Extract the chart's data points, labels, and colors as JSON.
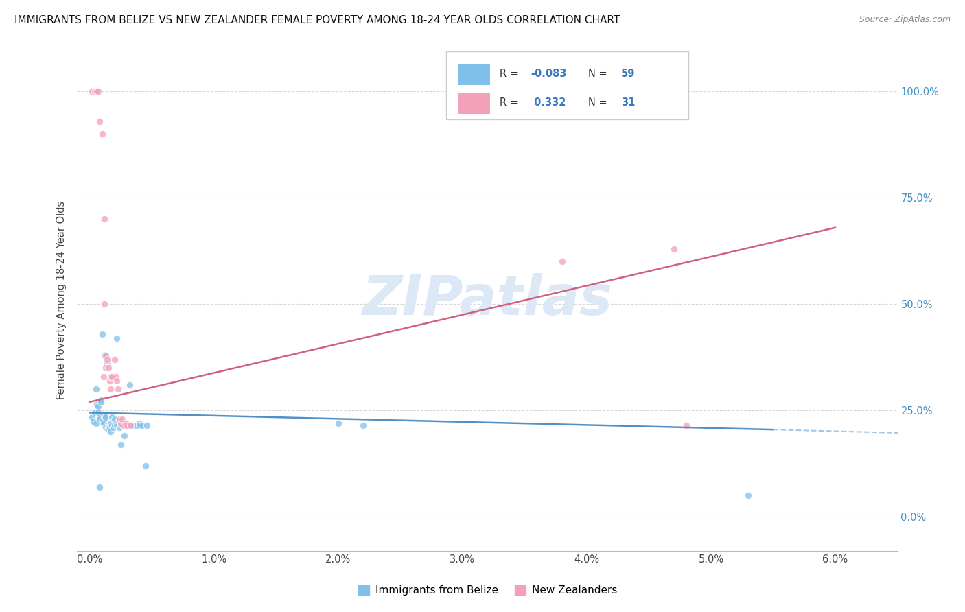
{
  "title": "IMMIGRANTS FROM BELIZE VS NEW ZEALANDER FEMALE POVERTY AMONG 18-24 YEAR OLDS CORRELATION CHART",
  "source": "Source: ZipAtlas.com",
  "ylabel_label": "Female Poverty Among 18-24 Year Olds",
  "xlim": [
    0.0,
    0.06
  ],
  "ylim": [
    0.0,
    1.05
  ],
  "ytick_vals": [
    0.0,
    0.25,
    0.5,
    0.75,
    1.0
  ],
  "ytick_labels": [
    "0.0%",
    "25.0%",
    "50.0%",
    "75.0%",
    "100.0%"
  ],
  "xtick_vals": [
    0.0,
    0.01,
    0.02,
    0.03,
    0.04,
    0.05,
    0.06
  ],
  "xtick_labels": [
    "0.0%",
    "1.0%",
    "2.0%",
    "3.0%",
    "4.0%",
    "5.0%",
    "6.0%"
  ],
  "blue_scatter": [
    [
      0.0002,
      0.235
    ],
    [
      0.0003,
      0.225
    ],
    [
      0.0004,
      0.245
    ],
    [
      0.0005,
      0.22
    ],
    [
      0.0005,
      0.3
    ],
    [
      0.0006,
      0.265
    ],
    [
      0.0007,
      0.245
    ],
    [
      0.0007,
      0.26
    ],
    [
      0.0008,
      0.235
    ],
    [
      0.0008,
      0.23
    ],
    [
      0.0009,
      0.275
    ],
    [
      0.0009,
      0.27
    ],
    [
      0.001,
      0.43
    ],
    [
      0.001,
      0.225
    ],
    [
      0.0011,
      0.24
    ],
    [
      0.0011,
      0.22
    ],
    [
      0.0012,
      0.38
    ],
    [
      0.0012,
      0.235
    ],
    [
      0.0013,
      0.235
    ],
    [
      0.0013,
      0.21
    ],
    [
      0.0014,
      0.36
    ],
    [
      0.0014,
      0.215
    ],
    [
      0.0015,
      0.215
    ],
    [
      0.0015,
      0.205
    ],
    [
      0.0016,
      0.215
    ],
    [
      0.0016,
      0.21
    ],
    [
      0.0017,
      0.22
    ],
    [
      0.0017,
      0.2
    ],
    [
      0.0018,
      0.235
    ],
    [
      0.0018,
      0.215
    ],
    [
      0.0019,
      0.21
    ],
    [
      0.002,
      0.23
    ],
    [
      0.002,
      0.215
    ],
    [
      0.0021,
      0.22
    ],
    [
      0.0022,
      0.42
    ],
    [
      0.0022,
      0.215
    ],
    [
      0.0023,
      0.215
    ],
    [
      0.0024,
      0.21
    ],
    [
      0.0025,
      0.215
    ],
    [
      0.0025,
      0.17
    ],
    [
      0.0026,
      0.22
    ],
    [
      0.0027,
      0.215
    ],
    [
      0.0028,
      0.215
    ],
    [
      0.0028,
      0.19
    ],
    [
      0.003,
      0.22
    ],
    [
      0.0031,
      0.215
    ],
    [
      0.0032,
      0.31
    ],
    [
      0.0033,
      0.215
    ],
    [
      0.0035,
      0.215
    ],
    [
      0.0038,
      0.215
    ],
    [
      0.004,
      0.22
    ],
    [
      0.004,
      0.215
    ],
    [
      0.0042,
      0.215
    ],
    [
      0.0045,
      0.12
    ],
    [
      0.0046,
      0.215
    ],
    [
      0.02,
      0.22
    ],
    [
      0.022,
      0.215
    ],
    [
      0.053,
      0.05
    ],
    [
      0.0008,
      0.07
    ]
  ],
  "pink_scatter": [
    [
      0.0002,
      1.0
    ],
    [
      0.0004,
      1.0
    ],
    [
      0.0006,
      1.0
    ],
    [
      0.0007,
      1.0
    ],
    [
      0.0008,
      0.93
    ],
    [
      0.001,
      0.9
    ],
    [
      0.0011,
      0.33
    ],
    [
      0.0012,
      0.7
    ],
    [
      0.0012,
      0.5
    ],
    [
      0.0013,
      0.38
    ],
    [
      0.0013,
      0.35
    ],
    [
      0.0014,
      0.37
    ],
    [
      0.0015,
      0.35
    ],
    [
      0.0016,
      0.32
    ],
    [
      0.0017,
      0.33
    ],
    [
      0.0017,
      0.3
    ],
    [
      0.0018,
      0.33
    ],
    [
      0.002,
      0.37
    ],
    [
      0.0021,
      0.33
    ],
    [
      0.0022,
      0.32
    ],
    [
      0.0023,
      0.3
    ],
    [
      0.0024,
      0.23
    ],
    [
      0.0025,
      0.22
    ],
    [
      0.0026,
      0.23
    ],
    [
      0.0028,
      0.215
    ],
    [
      0.0029,
      0.22
    ],
    [
      0.003,
      0.215
    ],
    [
      0.0033,
      0.215
    ],
    [
      0.038,
      0.6
    ],
    [
      0.047,
      0.63
    ],
    [
      0.048,
      0.215
    ]
  ],
  "blue_line": [
    [
      0.0,
      0.245
    ],
    [
      0.055,
      0.205
    ]
  ],
  "blue_dashed_line": [
    [
      0.055,
      0.205
    ],
    [
      0.068,
      0.195
    ]
  ],
  "pink_line": [
    [
      0.0,
      0.27
    ],
    [
      0.06,
      0.68
    ]
  ],
  "blue_scatter_color": "#7fbfea",
  "pink_scatter_color": "#f4a0b8",
  "blue_line_color": "#5090c8",
  "pink_line_color": "#d06080",
  "blue_dashed_color": "#a0c8e8",
  "grid_color": "#d8d8d8",
  "grid_style": "--",
  "background_color": "#ffffff",
  "watermark_text": "ZIPatlas",
  "watermark_color": "#dce8f5",
  "legend_blue_R": "-0.083",
  "legend_blue_N": "59",
  "legend_pink_R": "0.332",
  "legend_pink_N": "31",
  "legend_label_blue": "Immigrants from Belize",
  "legend_label_pink": "New Zealanders",
  "right_tick_color": "#4090c8",
  "scatter_size": 55,
  "scatter_alpha": 0.75
}
